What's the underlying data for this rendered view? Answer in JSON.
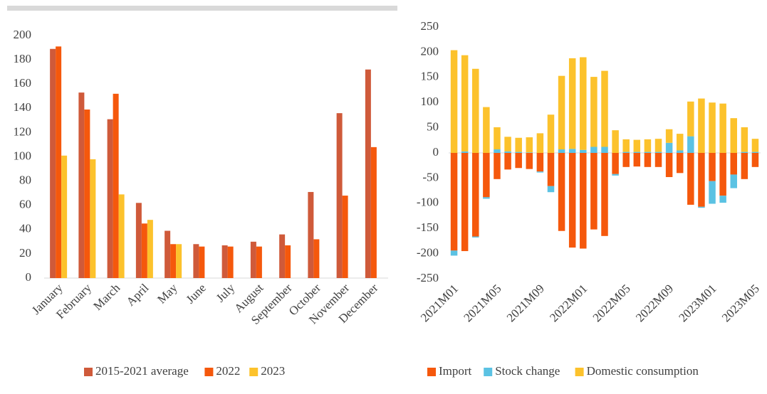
{
  "chart_data": [
    {
      "type": "bar",
      "categories": [
        "January",
        "February",
        "March",
        "April",
        "May",
        "June",
        "July",
        "August",
        "September",
        "October",
        "November",
        "December"
      ],
      "series": [
        {
          "name": "2015-2021 average",
          "color": "#cf5a3a",
          "values": [
            189,
            153,
            131,
            62,
            39,
            28,
            27,
            30,
            36,
            71,
            136,
            172
          ]
        },
        {
          "name": "2022",
          "color": "#f5580c",
          "values": [
            191,
            139,
            152,
            45,
            28,
            26,
            26,
            26,
            27,
            32,
            68,
            108
          ]
        },
        {
          "name": "2023",
          "color": "#fcc22c",
          "values": [
            101,
            98,
            69,
            48,
            28,
            null,
            null,
            null,
            null,
            null,
            null,
            null
          ]
        }
      ],
      "ylim": [
        0,
        200
      ],
      "yticks": [
        0,
        20,
        40,
        60,
        80,
        100,
        120,
        140,
        160,
        180,
        200
      ]
    },
    {
      "type": "stacked_bar",
      "categories": [
        "2021M01",
        null,
        null,
        null,
        "2021M05",
        null,
        null,
        null,
        "2021M09",
        null,
        null,
        null,
        "2022M01",
        null,
        null,
        null,
        "2022M05",
        null,
        null,
        null,
        "2022M09",
        null,
        null,
        null,
        "2023M01",
        null,
        null,
        null,
        "2023M05"
      ],
      "series": [
        {
          "name": "Import",
          "color": "#f5580c",
          "values": [
            -194,
            -195,
            -166,
            -88,
            -52,
            -33,
            -30,
            -32,
            -37,
            -66,
            -155,
            -188,
            -190,
            -152,
            -165,
            -42,
            -28,
            -27,
            -28,
            -28,
            -48,
            -40,
            -103,
            -107,
            -56,
            -85,
            -43,
            -52,
            -28
          ]
        },
        {
          "name": "Stock change",
          "color": "#5bc2e3",
          "values": [
            -10,
            3,
            -2,
            -3,
            7,
            3,
            2,
            1,
            -2,
            -12,
            7,
            8,
            6,
            12,
            12,
            -3,
            2,
            2,
            2,
            2,
            20,
            5,
            33,
            -2,
            -45,
            -14,
            -27,
            2,
            2
          ]
        },
        {
          "name": "Domestic consumption",
          "color": "#fcc22c",
          "values": [
            204,
            191,
            167,
            91,
            44,
            29,
            28,
            30,
            39,
            76,
            146,
            180,
            184,
            139,
            151,
            45,
            25,
            24,
            25,
            26,
            27,
            33,
            69,
            108,
            100,
            98,
            69,
            49,
            26
          ]
        }
      ],
      "ylim": [
        -250,
        250
      ],
      "yticks": [
        -250,
        -200,
        -150,
        -100,
        -50,
        0,
        50,
        100,
        150,
        200,
        250
      ]
    }
  ]
}
